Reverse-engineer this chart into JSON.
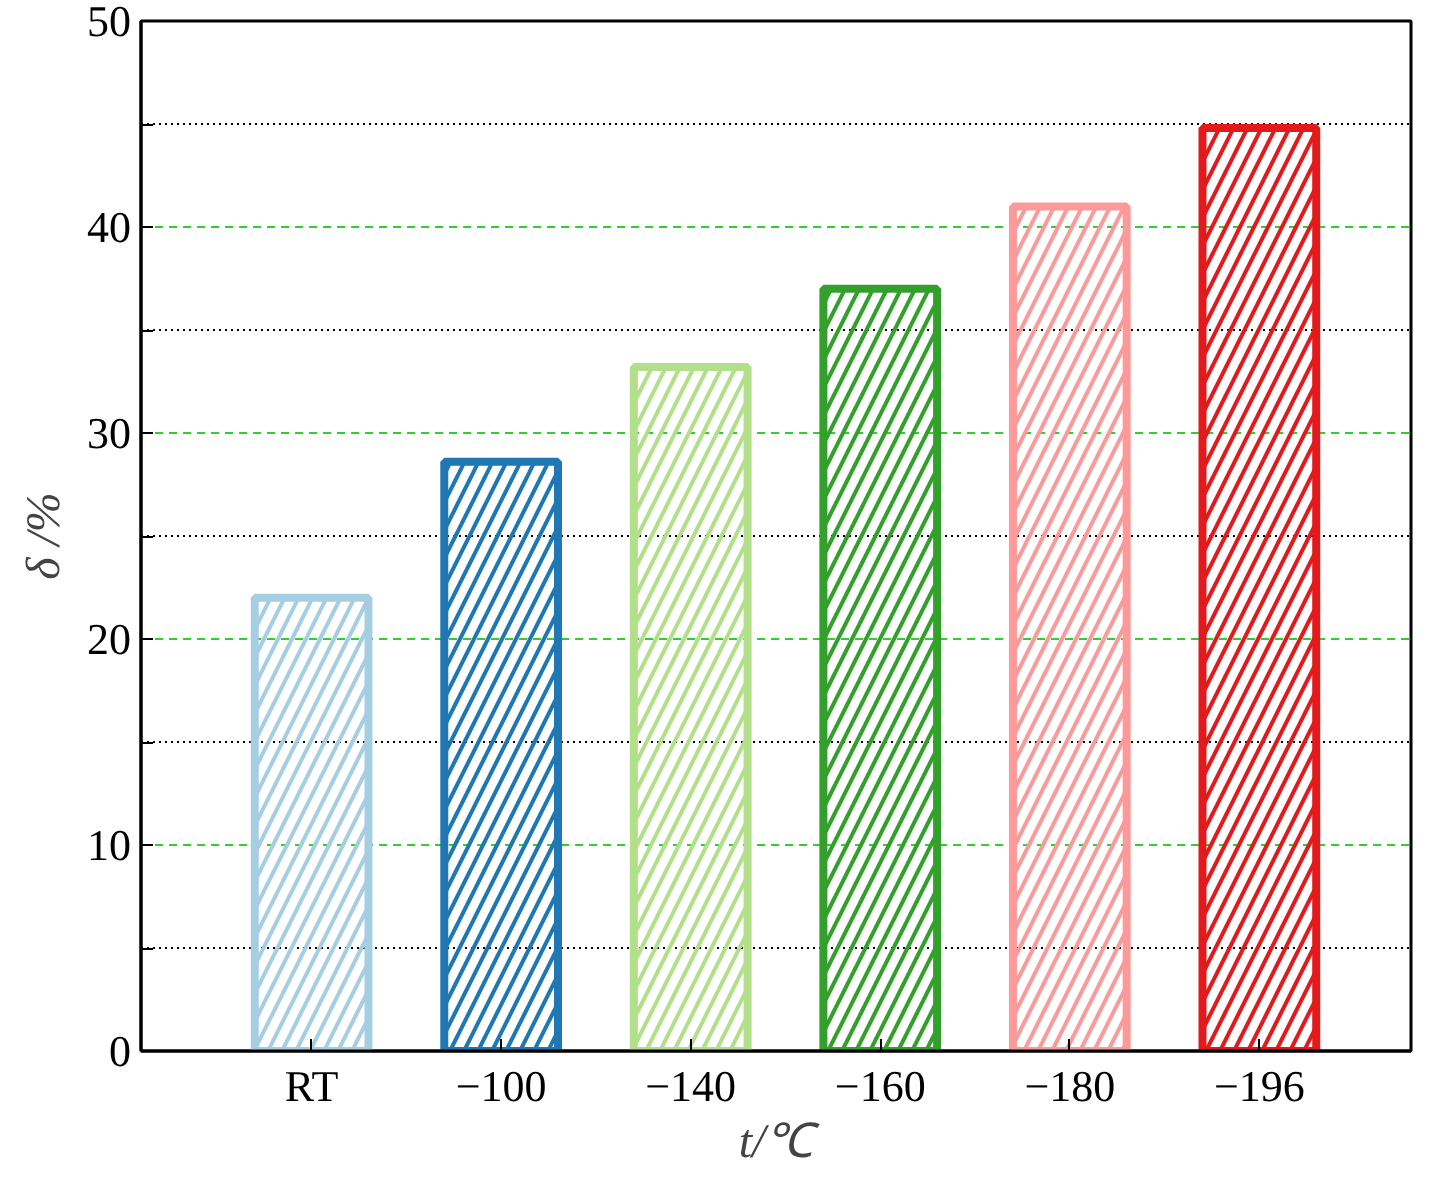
{
  "chart_data": {
    "type": "bar",
    "xlabel": "t/℃",
    "ylabel": "δ /%",
    "categories": [
      "RT",
      "−100",
      "−140",
      "−160",
      "−180",
      "−196"
    ],
    "values": [
      22.0,
      28.6,
      33.2,
      37.0,
      41.0,
      44.8
    ],
    "colors": [
      "#a6cee3",
      "#1f78b4",
      "#b2df8a",
      "#33a02c",
      "#fb9a99",
      "#e31a1c"
    ],
    "ylim": [
      0,
      50
    ],
    "yticks": [
      0,
      {
        "value": 5,
        "label": null
      },
      10,
      {
        "value": 15,
        "label": null
      },
      20,
      {
        "value": 25,
        "label": null
      },
      30,
      {
        "value": 35,
        "label": null
      },
      40,
      {
        "value": 45,
        "label": null
      },
      50
    ],
    "grid": "y"
  }
}
